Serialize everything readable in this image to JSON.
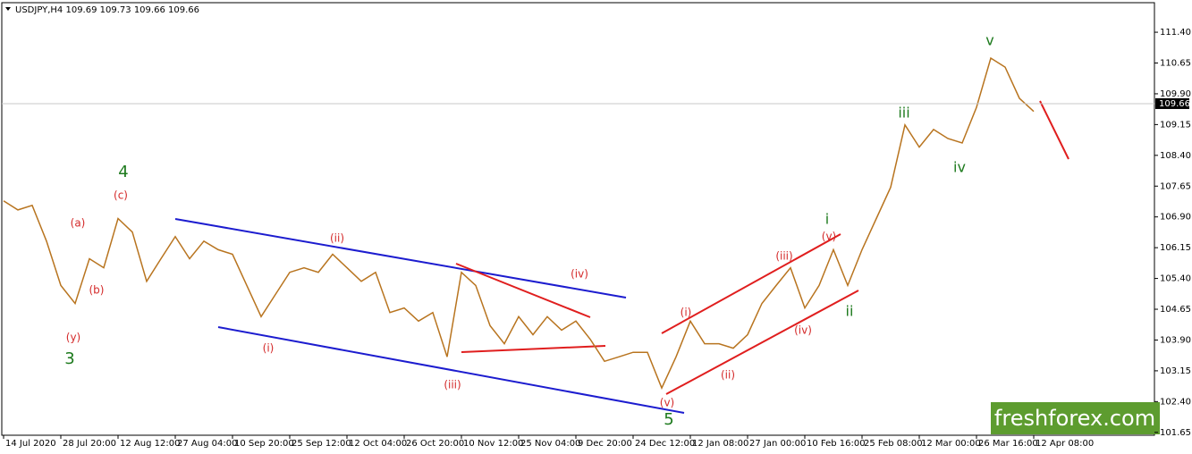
{
  "chart_data": {
    "type": "line",
    "title": "USDJPY,H4  109.69 109.73 109.66 109.66",
    "series": [
      {
        "name": "USDJPY",
        "color": "#b8741f",
        "values": [
          107.29,
          107.07,
          107.18,
          106.31,
          105.23,
          104.79,
          105.88,
          105.66,
          106.86,
          106.53,
          105.33,
          105.88,
          106.42,
          105.88,
          106.31,
          106.1,
          105.99,
          105.23,
          104.47,
          105.01,
          105.55,
          105.66,
          105.55,
          105.99,
          105.66,
          105.33,
          105.55,
          104.57,
          104.68,
          104.36,
          104.57,
          103.49,
          105.55,
          105.23,
          104.25,
          103.81,
          104.47,
          104.03,
          104.47,
          104.14,
          104.36,
          103.92,
          103.38,
          103.49,
          103.6,
          103.6,
          102.73,
          103.49,
          104.36,
          103.81,
          103.81,
          103.7,
          104.03,
          104.79,
          105.23,
          105.66,
          104.68,
          105.23,
          106.1,
          105.23,
          106.1,
          106.86,
          107.62,
          109.14,
          108.6,
          109.03,
          108.81,
          108.7,
          109.57,
          110.77,
          110.55,
          109.79,
          109.47
        ]
      }
    ],
    "last_price": 109.66,
    "xlim": [
      -0.125,
      80.4375
    ],
    "xticks": [
      {
        "value": 0,
        "label": "14 Jul 2020"
      },
      {
        "value": 4,
        "label": "28 Jul 20:00"
      },
      {
        "value": 8,
        "label": "12 Aug 12:00"
      },
      {
        "value": 12,
        "label": "27 Aug 04:00"
      },
      {
        "value": 16,
        "label": "10 Sep 20:00"
      },
      {
        "value": 20,
        "label": "25 Sep 12:00"
      },
      {
        "value": 24,
        "label": "12 Oct 04:00"
      },
      {
        "value": 28,
        "label": "26 Oct 20:00"
      },
      {
        "value": 32,
        "label": "10 Nov 12:00"
      },
      {
        "value": 36,
        "label": "25 Nov 04:00"
      },
      {
        "value": 40,
        "label": "9 Dec 20:00"
      },
      {
        "value": 44,
        "label": "24 Dec 12:00"
      },
      {
        "value": 48,
        "label": "12 Jan 08:00"
      },
      {
        "value": 52,
        "label": "27 Jan 00:00"
      },
      {
        "value": 56,
        "label": "10 Feb 16:00"
      },
      {
        "value": 60,
        "label": "25 Feb 08:00"
      },
      {
        "value": 64,
        "label": "12 Mar 00:00"
      },
      {
        "value": 68,
        "label": "26 Mar 16:00"
      },
      {
        "value": 72,
        "label": "12 Apr 08:00"
      }
    ],
    "ylim": [
      101.58,
      112.12
    ],
    "yticks": [
      {
        "value": 111.4,
        "label": "111.40"
      },
      110.65,
      {
        "value": 109.9,
        "label": "109.90"
      },
      109.15,
      {
        "value": 108.4,
        "label": "108.40"
      },
      107.65,
      {
        "value": 106.9,
        "label": "106.90"
      },
      106.15,
      {
        "value": 105.4,
        "label": "105.40"
      },
      104.65,
      {
        "value": 103.9,
        "label": "103.90"
      },
      103.15,
      {
        "value": 102.4,
        "label": "102.40"
      },
      101.65
    ],
    "annotations": [
      "4",
      "(c)",
      "(a)",
      "(b)",
      "(y)",
      "3",
      "(ii)",
      "(i)",
      "(iii)",
      "(iv)",
      "(v)",
      "5",
      "(i)",
      "(ii)",
      "(iii)",
      "(iv)",
      "(v)",
      "i",
      "ii",
      "iii",
      "iv",
      "v"
    ],
    "watermark": "freshforex.com"
  }
}
